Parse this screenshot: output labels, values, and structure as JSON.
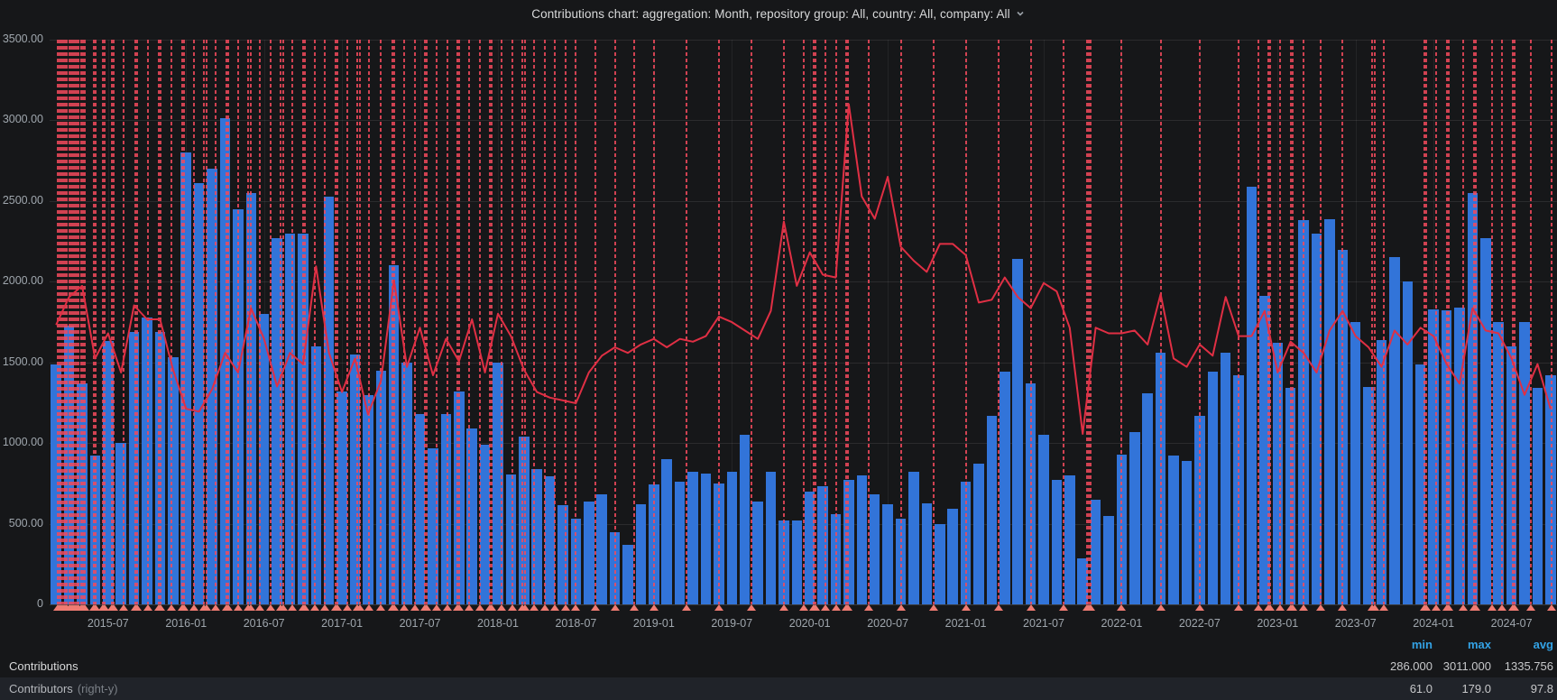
{
  "title": {
    "text": "Contributions chart: aggregation: Month, repository group: All, country: All, company: All",
    "dropdown_icon": "chevron-down-icon"
  },
  "legend": {
    "columns": {
      "min": "min",
      "max": "max",
      "avg": "avg"
    },
    "rows": [
      {
        "label": "Contributions",
        "suffix": "",
        "min": "286.000",
        "max": "3011.000",
        "avg": "1335.756"
      },
      {
        "label": "Contributors",
        "suffix": "(right-y)",
        "min": "61.0",
        "max": "179.0",
        "avg": "97.8"
      }
    ]
  },
  "colors": {
    "panel_bg": "#161719",
    "bar_blue": "#3274D9",
    "line_red": "#E02F44",
    "annotation_red": "#F2495C",
    "annotation_marker": "#ef7b72",
    "legend_header_blue": "#33A2E5",
    "text_primary": "#d8d9da",
    "text_secondary": "#9fa6ad"
  },
  "chart_data": {
    "type": "bar",
    "title": "Contributions chart: aggregation: Month, repository group: All, country: All, company: All",
    "grid": true,
    "legend_position": "bottom-table",
    "months": [
      "2015-03",
      "2015-04",
      "2015-05",
      "2015-06",
      "2015-07",
      "2015-08",
      "2015-09",
      "2015-10",
      "2015-11",
      "2015-12",
      "2016-01",
      "2016-02",
      "2016-03",
      "2016-04",
      "2016-05",
      "2016-06",
      "2016-07",
      "2016-08",
      "2016-09",
      "2016-10",
      "2016-11",
      "2016-12",
      "2017-01",
      "2017-02",
      "2017-03",
      "2017-04",
      "2017-05",
      "2017-06",
      "2017-07",
      "2017-08",
      "2017-09",
      "2017-10",
      "2017-11",
      "2017-12",
      "2018-01",
      "2018-02",
      "2018-03",
      "2018-04",
      "2018-05",
      "2018-06",
      "2018-07",
      "2018-08",
      "2018-09",
      "2018-10",
      "2018-11",
      "2018-12",
      "2019-01",
      "2019-02",
      "2019-03",
      "2019-04",
      "2019-05",
      "2019-06",
      "2019-07",
      "2019-08",
      "2019-09",
      "2019-10",
      "2019-11",
      "2019-12",
      "2020-01",
      "2020-02",
      "2020-03",
      "2020-04",
      "2020-05",
      "2020-06",
      "2020-07",
      "2020-08",
      "2020-09",
      "2020-10",
      "2020-11",
      "2020-12",
      "2021-01",
      "2021-02",
      "2021-03",
      "2021-04",
      "2021-05",
      "2021-06",
      "2021-07",
      "2021-08",
      "2021-09",
      "2021-10",
      "2021-11",
      "2021-12",
      "2022-01",
      "2022-02",
      "2022-03",
      "2022-04",
      "2022-05",
      "2022-06",
      "2022-07",
      "2022-08",
      "2022-09",
      "2022-10",
      "2022-11",
      "2022-12",
      "2023-01",
      "2023-02",
      "2023-03",
      "2023-04",
      "2023-05",
      "2023-06",
      "2023-07",
      "2023-08",
      "2023-09",
      "2023-10",
      "2023-11",
      "2023-12",
      "2024-01",
      "2024-02",
      "2024-03",
      "2024-04",
      "2024-05",
      "2024-06",
      "2024-07",
      "2024-08",
      "2024-09",
      "2024-10"
    ],
    "series": [
      {
        "name": "Contributions",
        "type": "bar",
        "axis": "left",
        "color": "#3274D9",
        "values": [
          1490,
          1730,
          1370,
          920,
          1630,
          1000,
          1690,
          1780,
          1690,
          1530,
          2800,
          2610,
          2700,
          3011,
          2450,
          2550,
          1800,
          2270,
          2300,
          2300,
          1600,
          2530,
          1320,
          1550,
          1300,
          1450,
          2100,
          1500,
          1180,
          970,
          1180,
          1320,
          1090,
          990,
          1500,
          805,
          1040,
          840,
          795,
          615,
          530,
          640,
          680,
          450,
          370,
          620,
          745,
          900,
          760,
          820,
          810,
          750,
          820,
          1050,
          640,
          820,
          520,
          520,
          700,
          730,
          560,
          770,
          800,
          680,
          620,
          530,
          820,
          625,
          500,
          590,
          760,
          870,
          1170,
          1440,
          2140,
          1370,
          1050,
          770,
          800,
          286,
          650,
          550,
          930,
          1070,
          1310,
          1560,
          920,
          890,
          1170,
          1440,
          1560,
          1420,
          2590,
          1910,
          1620,
          1340,
          2380,
          2300,
          2390,
          2200,
          1750,
          1350,
          1640,
          2150,
          2000,
          1490,
          1830,
          1820,
          1840,
          2550,
          2270,
          1750,
          1600,
          1750,
          1340,
          1420
        ]
      },
      {
        "name": "Contributors",
        "type": "line",
        "axis": "right",
        "color": "#E02F44",
        "values": [
          100,
          110,
          114,
          88,
          97,
          83,
          107,
          102,
          102,
          84,
          70,
          69,
          77,
          90,
          83,
          106,
          95,
          78,
          90,
          86,
          121,
          90,
          76,
          88,
          68,
          80,
          116,
          85,
          99,
          82,
          95,
          87,
          102,
          83,
          104,
          96,
          84,
          76,
          74,
          73,
          72,
          83,
          89,
          92,
          90,
          93,
          95,
          92,
          95,
          94,
          96,
          103,
          101,
          98,
          95,
          105,
          137,
          114,
          126,
          118,
          117,
          179,
          146,
          138,
          153,
          128,
          123,
          119,
          129,
          129,
          125,
          108,
          109,
          117,
          110,
          106,
          115,
          112,
          99,
          61,
          99,
          97,
          97,
          98,
          93,
          111,
          88,
          85,
          93,
          89,
          110,
          96,
          96,
          105,
          83,
          94,
          90,
          83,
          98,
          105,
          96,
          92,
          85,
          98,
          93,
          99,
          96,
          86,
          79,
          106,
          98,
          97,
          88,
          75,
          86,
          70
        ]
      }
    ],
    "y_left": {
      "min": 0,
      "max": 3500,
      "tick_step": 500,
      "tick_labels": [
        "0",
        "500.00",
        "1000.00",
        "1500.00",
        "2000.00",
        "2500.00",
        "3000.00",
        "3500.00"
      ]
    },
    "y_right": {
      "plot_scale_to_left": 17.32
    },
    "x_first_tick_index": 4,
    "x_tick_every": 6,
    "x_tick_labels": [
      "2015-07",
      "2016-01",
      "2016-07",
      "2017-01",
      "2017-07",
      "2018-01",
      "2018-07",
      "2019-01",
      "2019-07",
      "2020-01",
      "2020-07",
      "2021-01",
      "2021-07",
      "2022-01",
      "2022-07",
      "2023-01",
      "2023-07",
      "2024-01",
      "2024-07"
    ],
    "annotations": {
      "color": "#F2495C",
      "positions": [
        0.1,
        0.25,
        0.4,
        0.55,
        0.7,
        0.85,
        1.0,
        1.15,
        1.3,
        1.45,
        1.6,
        1.75,
        1.9,
        2.05,
        2.2,
        2.9,
        3.05,
        3.6,
        3.75,
        4.3,
        4.45,
        5.2,
        6.1,
        6.25,
        7.1,
        7.9,
        8.05,
        8.9,
        9.7,
        9.85,
        10.6,
        11.4,
        11.55,
        12.3,
        13.1,
        13.25,
        14.0,
        14.8,
        14.95,
        15.7,
        16.5,
        17.3,
        17.45,
        18.2,
        19.0,
        19.15,
        19.9,
        20.7,
        21.5,
        21.65,
        22.4,
        23.2,
        23.35,
        24.1,
        25.0,
        25.9,
        26.05,
        26.8,
        27.6,
        28.4,
        28.55,
        29.3,
        30.1,
        30.9,
        31.05,
        31.8,
        32.6,
        33.4,
        33.55,
        34.3,
        35.1,
        35.9,
        36.05,
        36.8,
        37.6,
        38.4,
        39.2,
        40.0,
        41.5,
        43.0,
        44.5,
        46.0,
        48.5,
        51.0,
        53.5,
        56.0,
        57.5,
        58.3,
        58.45,
        59.2,
        60.0,
        60.8,
        60.95,
        62.5,
        65.0,
        67.5,
        70.0,
        72.5,
        75.0,
        77.5,
        79.3,
        79.45,
        79.6,
        82.0,
        85.0,
        88.0,
        91.0,
        92.5,
        93.3,
        93.45,
        94.2,
        95.0,
        95.15,
        96.0,
        97.3,
        99.0,
        101.3,
        101.45,
        102.2,
        105.3,
        105.45,
        106.2,
        107.0,
        107.15,
        108.3,
        109.1,
        109.25,
        110.5,
        111.3,
        112.1,
        112.25,
        113.5,
        115.1
      ]
    }
  }
}
